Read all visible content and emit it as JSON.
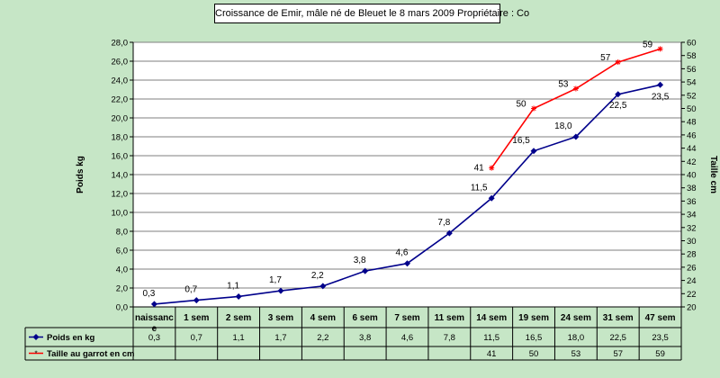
{
  "chart_data": {
    "type": "line",
    "title": "Croissance de Emir, mâle né de Bleuet le 8 mars 2009   Propriétaire : Co",
    "ylabel": "Poids kg",
    "y2label": "Taille cm",
    "ylim": [
      0,
      28
    ],
    "yticks": [
      "0,0",
      "2,0",
      "4,0",
      "6,0",
      "8,0",
      "10,0",
      "12,0",
      "14,0",
      "16,0",
      "18,0",
      "20,0",
      "22,0",
      "24,0",
      "26,0",
      "28,0"
    ],
    "y2lim": [
      20,
      60
    ],
    "y2ticks": [
      "20",
      "22",
      "24",
      "26",
      "28",
      "30",
      "32",
      "34",
      "36",
      "38",
      "40",
      "42",
      "44",
      "46",
      "48",
      "50",
      "52",
      "54",
      "56",
      "58",
      "60"
    ],
    "grid": true,
    "legend": "table-below",
    "categories": [
      "naissance",
      "1 sem",
      "2 sem",
      "3 sem",
      "4 sem",
      "6 sem",
      "7 sem",
      "11 sem",
      "14 sem",
      "19 sem",
      "24 sem",
      "31 sem",
      "47 sem"
    ],
    "series": [
      {
        "name": "Poids en kg",
        "axis": "left",
        "color": "#00008b",
        "marker": "diamond",
        "values": [
          0.3,
          0.7,
          1.1,
          1.7,
          2.2,
          3.8,
          4.6,
          7.8,
          11.5,
          16.5,
          18.0,
          22.5,
          23.5
        ],
        "labels": [
          "0,3",
          "0,7",
          "1,1",
          "1,7",
          "2,2",
          "3,8",
          "4,6",
          "7,8",
          "11,5",
          "16,5",
          "18,0",
          "22,5",
          "23,5"
        ]
      },
      {
        "name": "Taille au garrot en cm",
        "axis": "right",
        "color": "#ff0000",
        "marker": "star",
        "values": [
          null,
          null,
          null,
          null,
          null,
          null,
          null,
          null,
          41,
          50,
          53,
          57,
          59
        ],
        "labels": [
          "",
          "",
          "",
          "",
          "",
          "",
          "",
          "",
          "41",
          "50",
          "53",
          "57",
          "59"
        ]
      }
    ]
  }
}
